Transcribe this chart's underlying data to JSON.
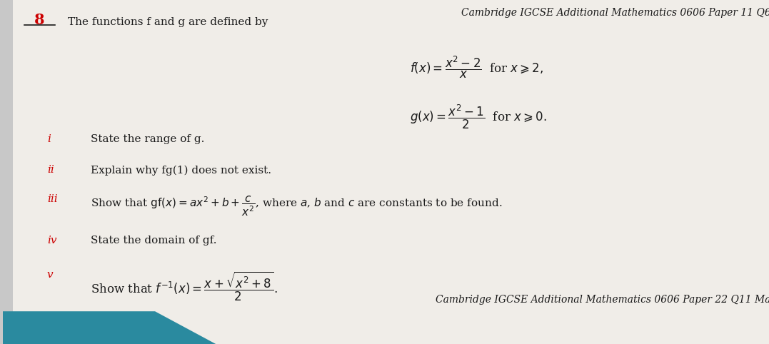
{
  "bg_color": "#f0ede8",
  "bar_color": "#2a8a9f",
  "question_number": "8",
  "header_text": "Cambridge IGCSE Additional Mathematics 0606 Paper 11 Q6",
  "footer_text": "Cambridge IGCSE Additional Mathematics 0606 Paper 22 Q11 Ma",
  "intro_text": "The functions f and g are defined by",
  "f_formula": "$f(x) = \\dfrac{x^2-2}{x}$  for $x \\geqslant 2,$",
  "g_formula": "$g(x) = \\dfrac{x^2-1}{2}$  for $x \\geqslant 0.$",
  "roman_i": "i",
  "roman_ii": "ii",
  "roman_iii": "iii",
  "roman_iv": "iv",
  "roman_v": "v",
  "q_i": "State the range of g.",
  "q_ii": "Explain why fg(1) does not exist.",
  "q_iii": "Show that $\\mathrm{gf}(x) = ax^2 + b + \\dfrac{c}{x^2}$, where $a$, $b$ and $c$ are constants to be found.",
  "q_iv": "State the domain of gf.",
  "q_v": "Show that $f^{-1}(x) = \\dfrac{x + \\sqrt{x^2+8}}{2}$.",
  "roman_color": "#cc0000",
  "text_color": "#1a1a1a",
  "header_color": "#1a1a1a",
  "underline_color": "#1a1a1a",
  "q_num_color": "#cc0000"
}
